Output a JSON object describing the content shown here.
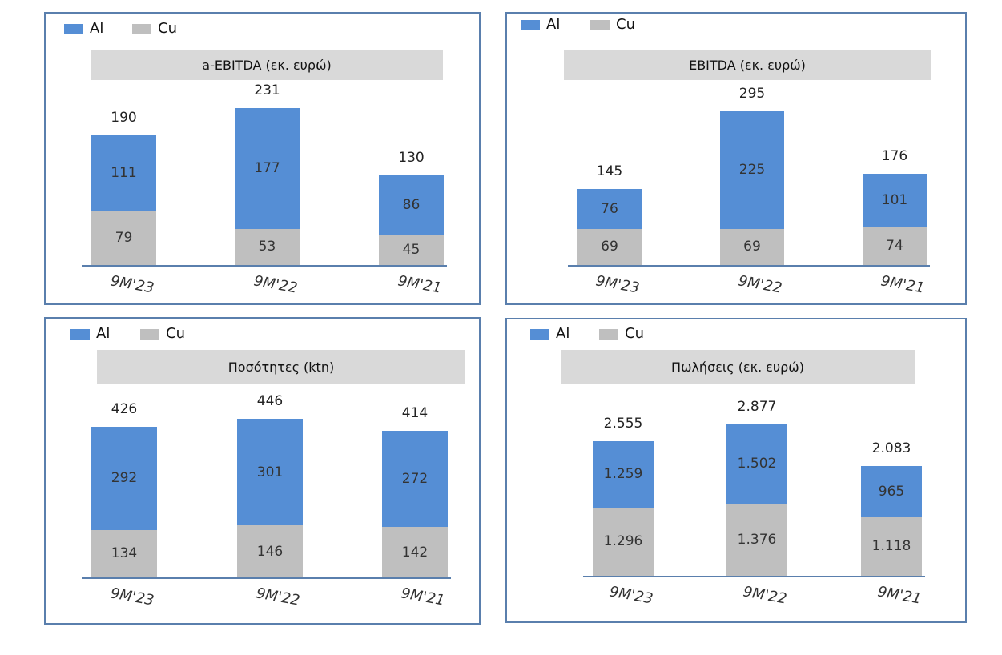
{
  "colors": {
    "Al": "#558ed5",
    "Cu": "#bfbfbf",
    "frame": "#5a7fad",
    "band": "#d9d9d9"
  },
  "chart_data": [
    {
      "type": "bar",
      "stacked": true,
      "title": "a-EBITDA (εκ. ευρώ)",
      "legend": [
        "Al",
        "Cu"
      ],
      "categories": [
        "9M'23",
        "9M'22",
        "9M'21"
      ],
      "series": [
        {
          "name": "Cu",
          "values": [
            79,
            53,
            45
          ]
        },
        {
          "name": "Al",
          "values": [
            111,
            177,
            86
          ]
        }
      ],
      "totals": [
        190,
        231,
        130
      ],
      "labels": {
        "Cu": [
          "79",
          "53",
          "45"
        ],
        "Al": [
          "111",
          "177",
          "86"
        ],
        "totals": [
          "190",
          "231",
          "130"
        ]
      }
    },
    {
      "type": "bar",
      "stacked": true,
      "title": "EBITDA (εκ. ευρώ)",
      "legend": [
        "Al",
        "Cu"
      ],
      "categories": [
        "9M'23",
        "9M'22",
        "9M'21"
      ],
      "series": [
        {
          "name": "Cu",
          "values": [
            69,
            69,
            74
          ]
        },
        {
          "name": "Al",
          "values": [
            76,
            225,
            101
          ]
        }
      ],
      "totals": [
        145,
        295,
        176
      ],
      "labels": {
        "Cu": [
          "69",
          "69",
          "74"
        ],
        "Al": [
          "76",
          "225",
          "101"
        ],
        "totals": [
          "145",
          "295",
          "176"
        ]
      }
    },
    {
      "type": "bar",
      "stacked": true,
      "title": "Ποσότητες (ktn)",
      "legend": [
        "Al",
        "Cu"
      ],
      "categories": [
        "9M'23",
        "9M'22",
        "9M'21"
      ],
      "series": [
        {
          "name": "Cu",
          "values": [
            134,
            146,
            142
          ]
        },
        {
          "name": "Al",
          "values": [
            292,
            301,
            272
          ]
        }
      ],
      "totals": [
        426,
        446,
        414
      ],
      "labels": {
        "Cu": [
          "134",
          "146",
          "142"
        ],
        "Al": [
          "292",
          "301",
          "272"
        ],
        "totals": [
          "426",
          "446",
          "414"
        ]
      }
    },
    {
      "type": "bar",
      "stacked": true,
      "title": "Πωλήσεις (εκ. ευρώ)",
      "legend": [
        "Al",
        "Cu"
      ],
      "categories": [
        "9M'23",
        "9M'22",
        "9M'21"
      ],
      "series": [
        {
          "name": "Cu",
          "values": [
            1296,
            1376,
            1118
          ]
        },
        {
          "name": "Al",
          "values": [
            1259,
            1502,
            965
          ]
        }
      ],
      "totals": [
        2555,
        2877,
        2083
      ],
      "labels": {
        "Cu": [
          "1.296",
          "1.376",
          "1.118"
        ],
        "Al": [
          "1.259",
          "1.502",
          "965"
        ],
        "totals": [
          "2.555",
          "2.877",
          "2.083"
        ]
      }
    }
  ]
}
